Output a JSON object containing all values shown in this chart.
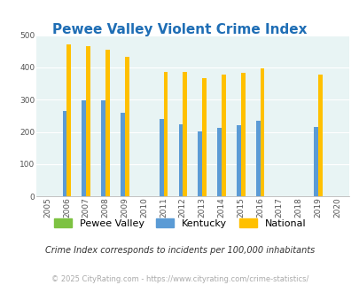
{
  "title": "Pewee Valley Violent Crime Index",
  "years": [
    2005,
    2006,
    2007,
    2008,
    2009,
    2010,
    2011,
    2012,
    2013,
    2014,
    2015,
    2016,
    2017,
    2018,
    2019,
    2020
  ],
  "pewee_valley": [
    0,
    0,
    0,
    0,
    0,
    0,
    0,
    0,
    0,
    0,
    0,
    0,
    0,
    0,
    0,
    0
  ],
  "kentucky": [
    0,
    265,
    298,
    298,
    260,
    0,
    240,
    224,
    202,
    213,
    220,
    234,
    0,
    0,
    216,
    0
  ],
  "national": [
    0,
    472,
    467,
    455,
    432,
    0,
    387,
    387,
    366,
    377,
    383,
    397,
    0,
    0,
    379,
    0
  ],
  "bar_color_pewee": "#7dc242",
  "bar_color_kentucky": "#5b9bd5",
  "bar_color_national": "#ffc000",
  "fig_bg_color": "#ffffff",
  "plot_bg_color": "#e8f4f4",
  "title_color": "#1f6eb5",
  "title_fontsize": 11,
  "ylim": [
    0,
    500
  ],
  "yticks": [
    0,
    100,
    200,
    300,
    400,
    500
  ],
  "footnote1": "Crime Index corresponds to incidents per 100,000 inhabitants",
  "footnote2": "© 2025 CityRating.com - https://www.cityrating.com/crime-statistics/",
  "footnote1_color": "#333333",
  "footnote2_color": "#aaaaaa",
  "grid_color": "#ffffff",
  "bar_width": 0.22
}
